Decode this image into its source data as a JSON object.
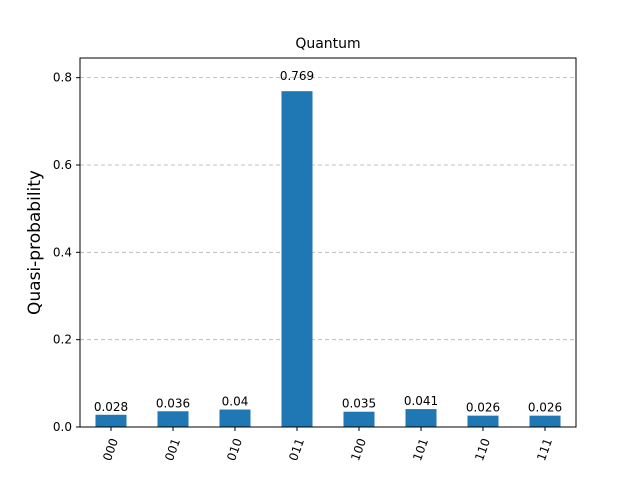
{
  "chart_data": {
    "type": "bar",
    "title": "Quantum",
    "xlabel": "",
    "ylabel": "Quasi-probability",
    "categories": [
      "000",
      "001",
      "010",
      "011",
      "100",
      "101",
      "110",
      "111"
    ],
    "values": [
      0.028,
      0.036,
      0.04,
      0.769,
      0.035,
      0.041,
      0.026,
      0.026
    ],
    "value_labels": [
      "0.028",
      "0.036",
      "0.04",
      "0.769",
      "0.035",
      "0.041",
      "0.026",
      "0.026"
    ],
    "ylim": [
      0,
      0.845
    ],
    "yticks": [
      0.0,
      0.2,
      0.4,
      0.6,
      0.8
    ],
    "ytick_labels": [
      "0.0",
      "0.2",
      "0.4",
      "0.6",
      "0.8"
    ],
    "grid": "y-dashed",
    "legend": "none",
    "colors": {
      "bar": "#1f77b4",
      "grid": "#b0b0b0",
      "axis": "#000000"
    }
  }
}
